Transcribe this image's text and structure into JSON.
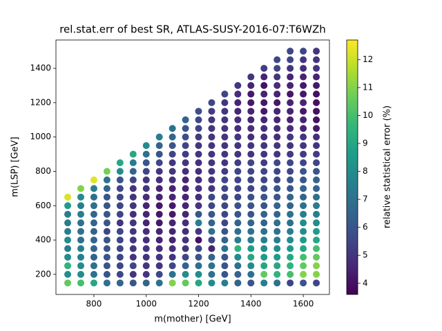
{
  "chart_data": {
    "type": "scatter",
    "title": "rel.stat.err of best SR, ATLAS-SUSY-2016-07:T6WZh",
    "x_label": "m(mother) [GeV]",
    "y_label": "m(LSP) [GeV]",
    "colorbar_label": "relative statistical error (%)",
    "colormap": "viridis",
    "xlim": [
      655,
      1700
    ],
    "ylim": [
      83,
      1565
    ],
    "clim": [
      3.6,
      12.7
    ],
    "xticks": [
      800,
      1000,
      1200,
      1400,
      1600
    ],
    "yticks": [
      200,
      400,
      600,
      800,
      1000,
      1200,
      1400
    ],
    "cticks": [
      4,
      5,
      6,
      7,
      8,
      9,
      10,
      11,
      12
    ],
    "x": [
      700,
      700,
      700,
      700,
      700,
      700,
      700,
      700,
      700,
      700,
      700,
      750,
      750,
      750,
      750,
      750,
      750,
      750,
      750,
      750,
      750,
      750,
      750,
      800,
      800,
      800,
      800,
      800,
      800,
      800,
      800,
      800,
      800,
      800,
      800,
      800,
      850,
      850,
      850,
      850,
      850,
      850,
      850,
      850,
      850,
      850,
      850,
      850,
      850,
      850,
      900,
      900,
      900,
      900,
      900,
      900,
      900,
      900,
      900,
      900,
      900,
      900,
      900,
      900,
      900,
      950,
      950,
      950,
      950,
      950,
      950,
      950,
      950,
      950,
      950,
      950,
      950,
      950,
      950,
      950,
      950,
      1000,
      1000,
      1000,
      1000,
      1000,
      1000,
      1000,
      1000,
      1000,
      1000,
      1000,
      1000,
      1000,
      1000,
      1000,
      1000,
      1000,
      1050,
      1050,
      1050,
      1050,
      1050,
      1050,
      1050,
      1050,
      1050,
      1050,
      1050,
      1050,
      1050,
      1050,
      1050,
      1050,
      1050,
      1050,
      1100,
      1100,
      1100,
      1100,
      1100,
      1100,
      1100,
      1100,
      1100,
      1100,
      1100,
      1100,
      1100,
      1100,
      1100,
      1100,
      1100,
      1100,
      1100,
      1150,
      1150,
      1150,
      1150,
      1150,
      1150,
      1150,
      1150,
      1150,
      1150,
      1150,
      1150,
      1150,
      1150,
      1150,
      1150,
      1150,
      1150,
      1150,
      1150,
      1200,
      1200,
      1200,
      1200,
      1200,
      1200,
      1200,
      1200,
      1200,
      1200,
      1200,
      1200,
      1200,
      1200,
      1200,
      1200,
      1200,
      1200,
      1200,
      1200,
      1200,
      1250,
      1250,
      1250,
      1250,
      1250,
      1250,
      1250,
      1250,
      1250,
      1250,
      1250,
      1250,
      1250,
      1250,
      1250,
      1250,
      1250,
      1250,
      1250,
      1250,
      1250,
      1250,
      1300,
      1300,
      1300,
      1300,
      1300,
      1300,
      1300,
      1300,
      1300,
      1300,
      1300,
      1300,
      1300,
      1300,
      1300,
      1300,
      1300,
      1300,
      1300,
      1300,
      1300,
      1300,
      1300,
      1350,
      1350,
      1350,
      1350,
      1350,
      1350,
      1350,
      1350,
      1350,
      1350,
      1350,
      1350,
      1350,
      1350,
      1350,
      1350,
      1350,
      1350,
      1350,
      1350,
      1350,
      1350,
      1350,
      1350,
      1400,
      1400,
      1400,
      1400,
      1400,
      1400,
      1400,
      1400,
      1400,
      1400,
      1400,
      1400,
      1400,
      1400,
      1400,
      1400,
      1400,
      1400,
      1400,
      1400,
      1400,
      1400,
      1400,
      1400,
      1400,
      1450,
      1450,
      1450,
      1450,
      1450,
      1450,
      1450,
      1450,
      1450,
      1450,
      1450,
      1450,
      1450,
      1450,
      1450,
      1450,
      1450,
      1450,
      1450,
      1450,
      1450,
      1450,
      1450,
      1450,
      1450,
      1450,
      1500,
      1500,
      1500,
      1500,
      1500,
      1500,
      1500,
      1500,
      1500,
      1500,
      1500,
      1500,
      1500,
      1500,
      1500,
      1500,
      1500,
      1500,
      1500,
      1500,
      1500,
      1500,
      1500,
      1500,
      1500,
      1500,
      1500,
      1550,
      1550,
      1550,
      1550,
      1550,
      1550,
      1550,
      1550,
      1550,
      1550,
      1550,
      1550,
      1550,
      1550,
      1550,
      1550,
      1550,
      1550,
      1550,
      1550,
      1550,
      1550,
      1550,
      1550,
      1550,
      1550,
      1550,
      1550,
      1600,
      1600,
      1600,
      1600,
      1600,
      1600,
      1600,
      1600,
      1600,
      1600,
      1600,
      1600,
      1600,
      1600,
      1600,
      1600,
      1600,
      1600,
      1600,
      1600,
      1600,
      1600,
      1600,
      1600,
      1600,
      1600,
      1600,
      1600,
      1650,
      1650,
      1650,
      1650,
      1650,
      1650,
      1650,
      1650,
      1650,
      1650,
      1650,
      1650,
      1650,
      1650,
      1650,
      1650,
      1650,
      1650,
      1650,
      1650,
      1650,
      1650,
      1650,
      1650,
      1650,
      1650,
      1650,
      1650
    ],
    "y": [
      150,
      200,
      250,
      300,
      350,
      400,
      450,
      500,
      550,
      600,
      650,
      150,
      200,
      250,
      300,
      350,
      400,
      450,
      500,
      550,
      600,
      650,
      700,
      150,
      200,
      250,
      300,
      350,
      400,
      450,
      500,
      550,
      600,
      650,
      700,
      750,
      150,
      200,
      250,
      300,
      350,
      400,
      450,
      500,
      550,
      600,
      650,
      700,
      750,
      800,
      150,
      200,
      250,
      300,
      350,
      400,
      450,
      500,
      550,
      600,
      650,
      700,
      750,
      800,
      850,
      150,
      200,
      250,
      300,
      350,
      400,
      450,
      500,
      550,
      600,
      650,
      700,
      750,
      800,
      850,
      900,
      150,
      200,
      250,
      300,
      350,
      400,
      450,
      500,
      550,
      600,
      650,
      700,
      750,
      800,
      850,
      900,
      950,
      150,
      200,
      250,
      300,
      350,
      400,
      450,
      500,
      550,
      600,
      650,
      700,
      750,
      800,
      850,
      900,
      950,
      1000,
      150,
      200,
      250,
      300,
      350,
      400,
      450,
      500,
      550,
      600,
      650,
      700,
      750,
      800,
      850,
      900,
      950,
      1000,
      1050,
      150,
      200,
      250,
      300,
      350,
      400,
      450,
      500,
      550,
      600,
      650,
      700,
      750,
      800,
      850,
      900,
      950,
      1000,
      1050,
      1100,
      150,
      200,
      250,
      300,
      350,
      400,
      450,
      500,
      550,
      600,
      650,
      700,
      750,
      800,
      850,
      900,
      950,
      1000,
      1050,
      1100,
      1150,
      150,
      200,
      250,
      300,
      350,
      400,
      450,
      500,
      550,
      600,
      650,
      700,
      750,
      800,
      850,
      900,
      950,
      1000,
      1050,
      1100,
      1150,
      1200,
      150,
      200,
      250,
      300,
      350,
      400,
      450,
      500,
      550,
      600,
      650,
      700,
      750,
      800,
      850,
      900,
      950,
      1000,
      1050,
      1100,
      1150,
      1200,
      1250,
      150,
      200,
      250,
      300,
      350,
      400,
      450,
      500,
      550,
      600,
      650,
      700,
      750,
      800,
      850,
      900,
      950,
      1000,
      1050,
      1100,
      1150,
      1200,
      1250,
      1300,
      150,
      200,
      250,
      300,
      350,
      400,
      450,
      500,
      550,
      600,
      650,
      700,
      750,
      800,
      850,
      900,
      950,
      1000,
      1050,
      1100,
      1150,
      1200,
      1250,
      1300,
      1350,
      150,
      200,
      250,
      300,
      350,
      400,
      450,
      500,
      550,
      600,
      650,
      700,
      750,
      800,
      850,
      900,
      950,
      1000,
      1050,
      1100,
      1150,
      1200,
      1250,
      1300,
      1350,
      1400,
      150,
      200,
      250,
      300,
      350,
      400,
      450,
      500,
      550,
      600,
      650,
      700,
      750,
      800,
      850,
      900,
      950,
      1000,
      1050,
      1100,
      1150,
      1200,
      1250,
      1300,
      1350,
      1400,
      1450,
      150,
      200,
      250,
      300,
      350,
      400,
      450,
      500,
      550,
      600,
      650,
      700,
      750,
      800,
      850,
      900,
      950,
      1000,
      1050,
      1100,
      1150,
      1200,
      1250,
      1300,
      1350,
      1400,
      1450,
      1500,
      150,
      200,
      250,
      300,
      350,
      400,
      450,
      500,
      550,
      600,
      650,
      700,
      750,
      800,
      850,
      900,
      950,
      1000,
      1050,
      1100,
      1150,
      1200,
      1250,
      1300,
      1350,
      1400,
      1450,
      1500,
      150,
      200,
      250,
      300,
      350,
      400,
      450,
      500,
      550,
      600,
      650,
      700,
      750,
      800,
      850,
      900,
      950,
      1000,
      1050,
      1100,
      1150,
      1200,
      1250,
      1300,
      1350,
      1400,
      1450,
      1500
    ],
    "values": [
      10.5,
      8,
      9.5,
      8,
      7.5,
      8,
      7.5,
      7.5,
      7.5,
      8.5,
      12.2,
      10,
      8,
      8,
      7.5,
      7.5,
      7,
      7,
      7,
      7.5,
      7.5,
      8,
      11,
      9,
      7,
      7,
      6.5,
      6.5,
      6.5,
      6.5,
      6.5,
      6.5,
      7,
      7,
      7.5,
      12.3,
      7,
      6,
      6,
      6,
      6,
      6,
      5.5,
      6,
      6,
      6,
      6,
      6.5,
      7,
      10.8,
      6.5,
      5.5,
      5.5,
      5.5,
      5.5,
      5.5,
      5.5,
      5,
      5.5,
      5.5,
      5.5,
      5.5,
      6,
      8,
      9,
      6,
      5,
      5.5,
      5,
      5,
      5,
      5,
      5,
      4.8,
      5,
      5,
      5,
      5.5,
      6.5,
      7.5,
      9,
      6.5,
      5,
      5,
      5,
      5,
      4.8,
      4.8,
      4.5,
      4.5,
      4.5,
      4.8,
      5,
      5,
      5.5,
      6,
      7,
      8,
      7,
      5.5,
      5,
      5,
      4.8,
      4.5,
      4.5,
      4.2,
      4.2,
      4.2,
      4.5,
      4.5,
      4.8,
      5,
      5.5,
      6,
      6.5,
      7.5,
      11,
      7,
      5.5,
      5,
      4.8,
      4.5,
      4.5,
      4.5,
      4.2,
      4.2,
      4.5,
      4.5,
      4.8,
      5,
      5,
      5.5,
      6,
      6.5,
      7,
      10.5,
      8,
      6.5,
      5.5,
      5,
      5,
      4.8,
      4.8,
      4.5,
      4.5,
      4.5,
      4.5,
      4.5,
      4.8,
      5,
      5.2,
      5.5,
      5.8,
      6,
      6.5,
      9,
      8,
      7,
      6,
      5.5,
      4,
      5,
      7.5,
      6,
      5,
      4.8,
      5,
      4.8,
      4.8,
      4.8,
      5,
      5,
      5.2,
      5.5,
      5.5,
      5.8,
      8,
      7,
      7,
      6.5,
      4.5,
      5.5,
      7,
      6.5,
      6,
      5.5,
      5.5,
      5,
      5,
      5,
      5,
      5,
      5,
      5,
      5,
      5,
      5.2,
      5.5,
      7.5,
      6,
      6,
      6,
      7,
      6.5,
      6,
      5.5,
      5.5,
      5.5,
      5.5,
      5.5,
      5.5,
      5.2,
      5,
      5,
      5,
      5,
      5,
      5,
      5,
      5,
      5.5,
      6.5,
      6.5,
      7,
      8,
      9.5,
      7.5,
      7,
      6.5,
      6,
      5.8,
      5.5,
      5.5,
      5.5,
      5.5,
      5.2,
      5,
      5,
      5,
      4.8,
      4.8,
      4.5,
      4.5,
      4.8,
      5,
      6,
      7,
      8,
      9,
      8.5,
      7.5,
      7,
      6.5,
      6,
      6,
      5.8,
      5.5,
      5.5,
      5.5,
      5.5,
      5,
      5,
      4.8,
      4.8,
      4.5,
      4.5,
      4.2,
      4.2,
      4.5,
      5,
      7.5,
      10.5,
      9,
      8.5,
      8,
      7.5,
      7,
      6.5,
      6.5,
      6,
      6,
      5.8,
      5.5,
      5.5,
      5.2,
      5,
      5,
      4.8,
      4.8,
      4.5,
      4.2,
      4.2,
      4.5,
      4,
      4.5,
      5.2,
      7,
      9.5,
      9,
      8.5,
      8,
      7.5,
      7,
      7,
      6.5,
      6.5,
      6,
      6,
      5.5,
      5.5,
      5.5,
      5,
      5,
      4.8,
      4.8,
      4.5,
      4.5,
      4.2,
      4.5,
      4.8,
      5,
      5.5,
      5.5,
      5.5,
      10,
      9.5,
      9,
      8.5,
      8,
      7.5,
      7,
      7,
      6.5,
      6.5,
      6,
      6,
      5.5,
      5.5,
      5.2,
      5,
      5,
      4.8,
      4.5,
      4.5,
      4.5,
      4.2,
      4.5,
      4.5,
      5,
      5.5,
      5.5,
      6,
      11,
      10.5,
      10,
      9,
      8.5,
      8,
      8,
      7.5,
      7,
      6.5,
      6.5,
      6,
      6,
      5.5,
      5.2,
      5,
      5,
      4.5,
      4.5,
      4.2,
      4.5,
      4.2,
      4.2,
      4.5,
      4.8,
      5,
      5.5,
      5.5,
      11,
      11,
      10.5,
      10,
      9,
      8.5,
      8,
      7.5,
      7.5,
      7,
      6.5,
      6.5,
      6,
      5.5,
      5.2,
      5,
      4.8,
      4.2,
      4,
      4,
      4,
      4,
      4.2,
      4.5,
      5,
      5,
      5
    ]
  }
}
